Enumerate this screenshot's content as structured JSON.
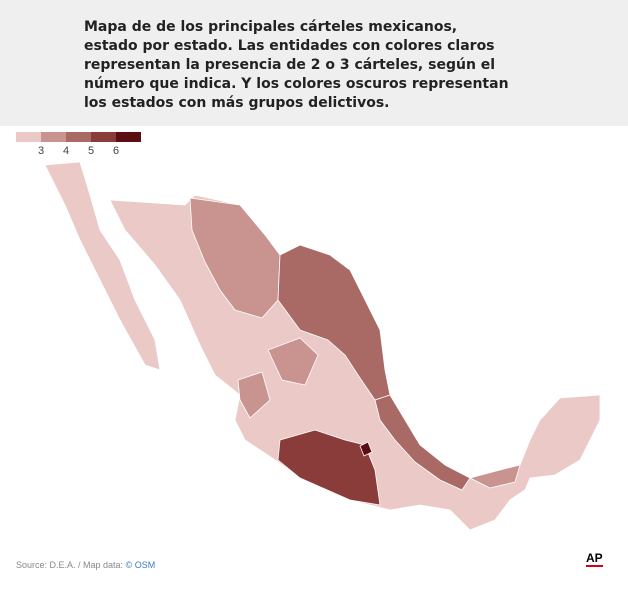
{
  "header": {
    "title": "Mapa de de los principales cárteles mexicanos, estado por estado. Las entidades con colores claros representan la presencia de 2 o 3 cárteles, según el número que indica. Y los colores oscuros representan los estados con más grupos delictivos."
  },
  "legend": {
    "colors": [
      "#ebc9c7",
      "#c9938f",
      "#a96a66",
      "#8a3c3b",
      "#5c0f12"
    ],
    "labels": [
      "3",
      "4",
      "5",
      "6"
    ]
  },
  "footer": {
    "source": "Source: D.E.A. / Map data: ",
    "osm": "© OSM",
    "logo": "AP"
  }
}
